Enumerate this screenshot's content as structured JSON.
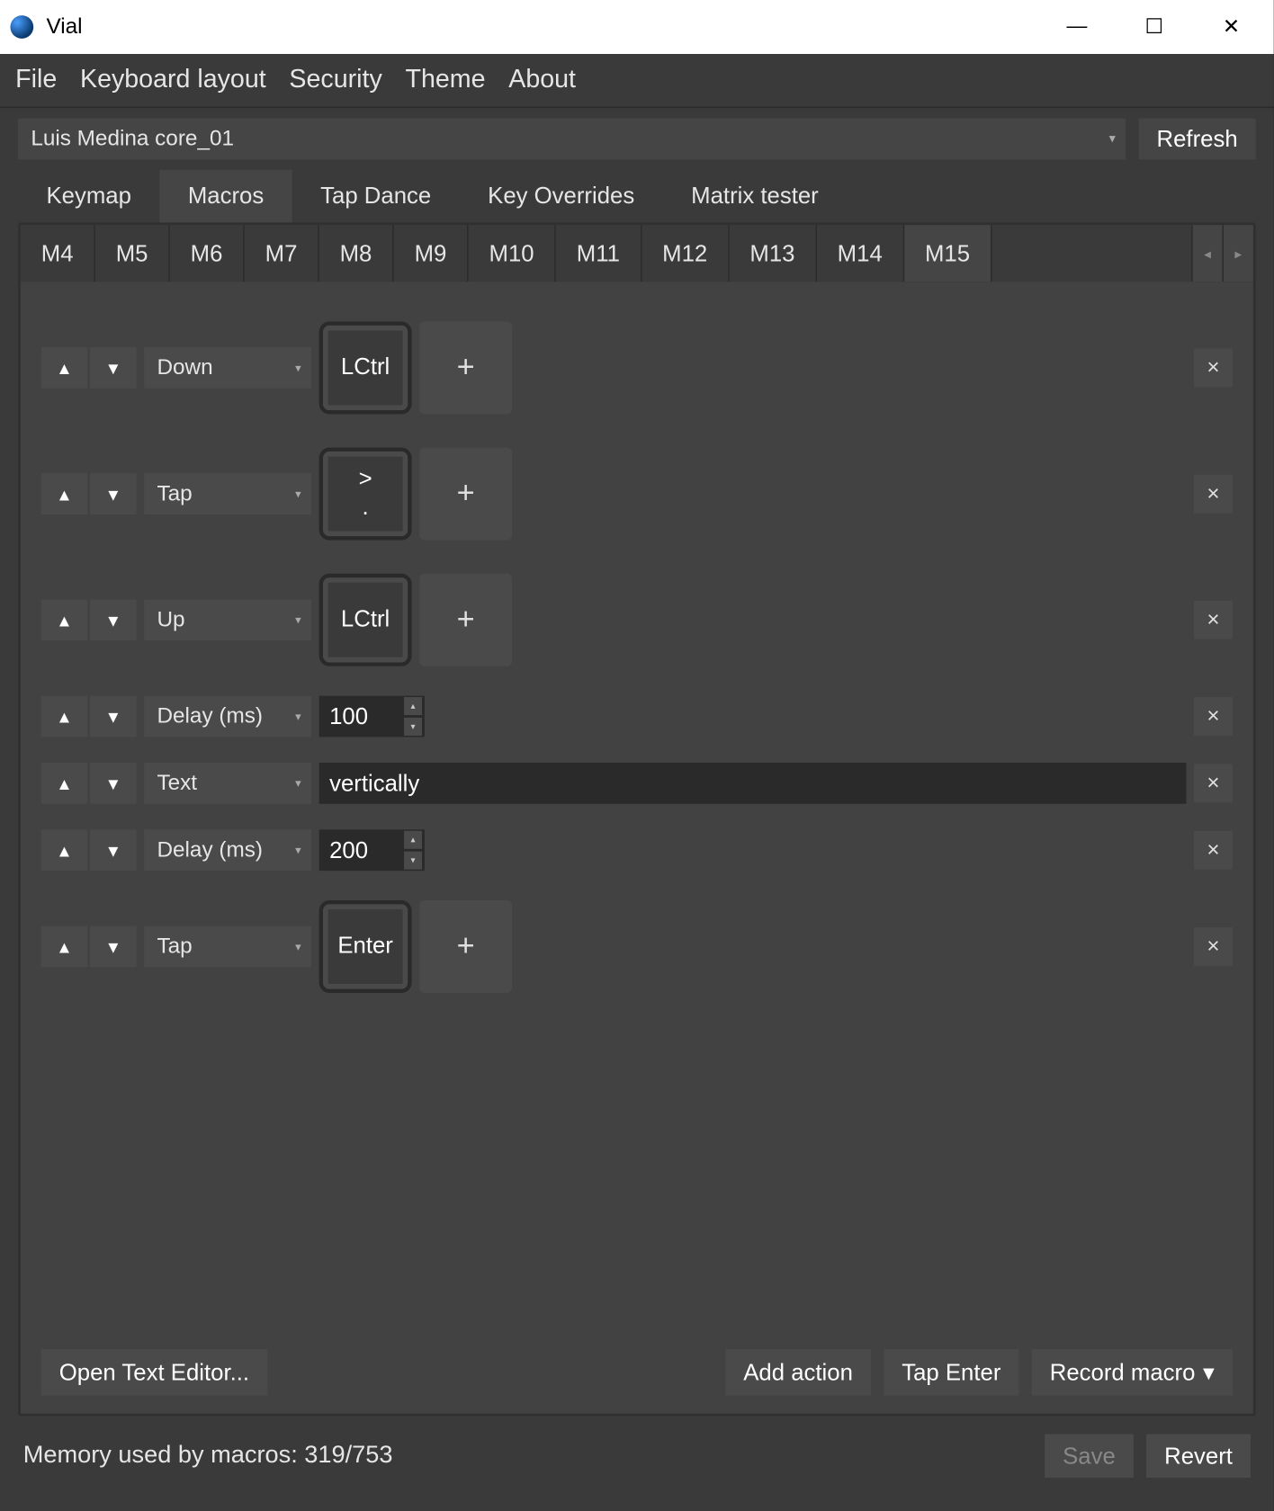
{
  "window": {
    "title": "Vial"
  },
  "menubar": [
    "File",
    "Keyboard layout",
    "Security",
    "Theme",
    "About"
  ],
  "device": {
    "selected": "Luis Medina core_01",
    "refresh": "Refresh"
  },
  "main_tabs": {
    "items": [
      "Keymap",
      "Macros",
      "Tap Dance",
      "Key Overrides",
      "Matrix tester"
    ],
    "active": 1
  },
  "macro_tabs": {
    "items": [
      "M4",
      "M5",
      "M6",
      "M7",
      "M8",
      "M9",
      "M10",
      "M11",
      "M12",
      "M13",
      "M14",
      "M15"
    ],
    "active": 11,
    "scroll_left": "◂",
    "scroll_right": "▸"
  },
  "actions": [
    {
      "type": "key",
      "mode": "Down",
      "keys": [
        "LCtrl"
      ]
    },
    {
      "type": "key",
      "mode": "Tap",
      "keys": [
        ">",
        "."
      ]
    },
    {
      "type": "key",
      "mode": "Up",
      "keys": [
        "LCtrl"
      ]
    },
    {
      "type": "delay",
      "mode": "Delay (ms)",
      "value": "100"
    },
    {
      "type": "text",
      "mode": "Text",
      "value": "vertically"
    },
    {
      "type": "delay",
      "mode": "Delay (ms)",
      "value": "200"
    },
    {
      "type": "key",
      "mode": "Tap",
      "keys": [
        "Enter"
      ]
    }
  ],
  "symbols": {
    "up": "▲",
    "down": "▼",
    "plus": "+",
    "close": "×",
    "chevron": "▾"
  },
  "footer": {
    "open_editor": "Open Text Editor...",
    "add_action": "Add action",
    "tap_enter": "Tap Enter",
    "record": "Record macro"
  },
  "status": {
    "memory": "Memory used by macros: 319/753",
    "save": "Save",
    "revert": "Revert"
  }
}
